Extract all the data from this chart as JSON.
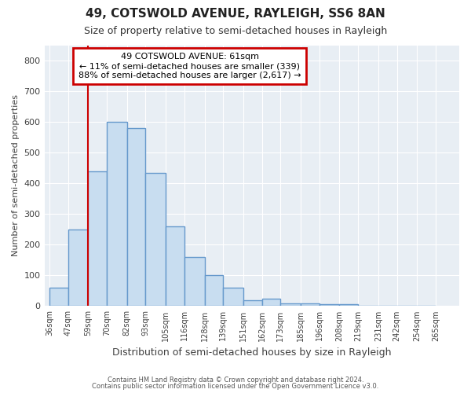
{
  "title1": "49, COTSWOLD AVENUE, RAYLEIGH, SS6 8AN",
  "title2": "Size of property relative to semi-detached houses in Rayleigh",
  "xlabel": "Distribution of semi-detached houses by size in Rayleigh",
  "ylabel": "Number of semi-detached properties",
  "bar_edges": [
    36,
    47,
    59,
    70,
    82,
    93,
    105,
    116,
    128,
    139,
    151,
    162,
    173,
    185,
    196,
    208,
    219,
    231,
    242,
    254,
    265
  ],
  "bar_heights": [
    60,
    250,
    440,
    600,
    580,
    435,
    260,
    160,
    100,
    60,
    20,
    25,
    10,
    10,
    5,
    5,
    0,
    0,
    0,
    0
  ],
  "bar_color": "#c8ddf0",
  "bar_edgecolor": "#6699cc",
  "bar_linewidth": 1.0,
  "redline_x": 59,
  "ylim": [
    0,
    850
  ],
  "yticks": [
    0,
    100,
    200,
    300,
    400,
    500,
    600,
    700,
    800
  ],
  "annotation_title": "49 COTSWOLD AVENUE: 61sqm",
  "annotation_line1": "← 11% of semi-detached houses are smaller (339)",
  "annotation_line2": "88% of semi-detached houses are larger (2,617) →",
  "footer1": "Contains HM Land Registry data © Crown copyright and database right 2024.",
  "footer2": "Contains public sector information licensed under the Open Government Licence v3.0.",
  "bg_color": "#ffffff",
  "plot_bg_color": "#e8eef4",
  "grid_color": "#ffffff",
  "annotation_box_color": "#ffffff",
  "annotation_box_edgecolor": "#cc0000",
  "redline_color": "#cc0000",
  "tick_label_color": "#404040",
  "axis_label_color": "#404040"
}
